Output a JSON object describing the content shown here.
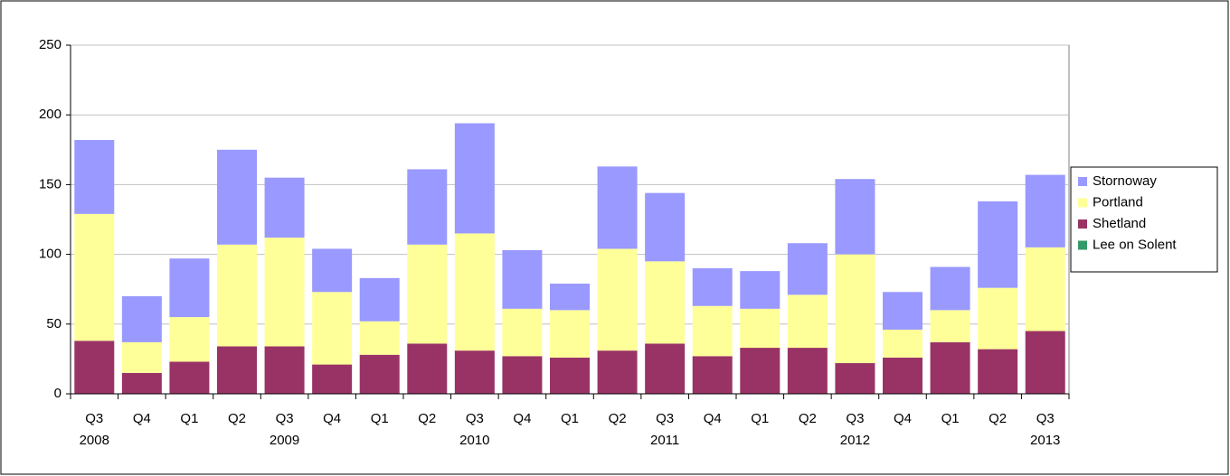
{
  "chart_data": {
    "type": "stacked_bar",
    "categories": [
      "Q3",
      "Q4",
      "Q1",
      "Q2",
      "Q3",
      "Q4",
      "Q1",
      "Q2",
      "Q3",
      "Q4",
      "Q1",
      "Q2",
      "Q3",
      "Q4",
      "Q1",
      "Q2",
      "Q3",
      "Q4",
      "Q1",
      "Q2",
      "Q3"
    ],
    "category_years": [
      "2008",
      null,
      null,
      null,
      "2009",
      null,
      null,
      null,
      "2010",
      null,
      null,
      null,
      "2011",
      null,
      null,
      null,
      "2012",
      null,
      null,
      null,
      "2013"
    ],
    "series": [
      {
        "name": "Lee on Solent",
        "color": "#339966",
        "values": [
          0,
          0,
          0,
          0,
          0,
          0,
          0,
          0,
          0,
          0,
          0,
          0,
          0,
          0,
          0,
          0,
          0,
          0,
          0,
          0,
          0
        ]
      },
      {
        "name": "Shetland",
        "color": "#993366",
        "values": [
          38,
          15,
          23,
          34,
          34,
          21,
          28,
          36,
          31,
          27,
          26,
          31,
          36,
          27,
          33,
          33,
          22,
          26,
          37,
          32,
          45
        ]
      },
      {
        "name": "Portland",
        "color": "#ffff99",
        "values": [
          91,
          22,
          32,
          73,
          78,
          52,
          24,
          71,
          84,
          34,
          34,
          73,
          59,
          36,
          28,
          38,
          78,
          20,
          23,
          44,
          60
        ]
      },
      {
        "name": "Stornoway",
        "color": "#9999ff",
        "values": [
          53,
          33,
          42,
          68,
          43,
          31,
          31,
          54,
          79,
          42,
          19,
          59,
          49,
          27,
          27,
          37,
          54,
          27,
          31,
          62,
          52
        ]
      }
    ],
    "ylim": [
      0,
      250
    ],
    "yticks": [
      0,
      50,
      100,
      150,
      200,
      250
    ],
    "grid": true,
    "legend": "right"
  }
}
